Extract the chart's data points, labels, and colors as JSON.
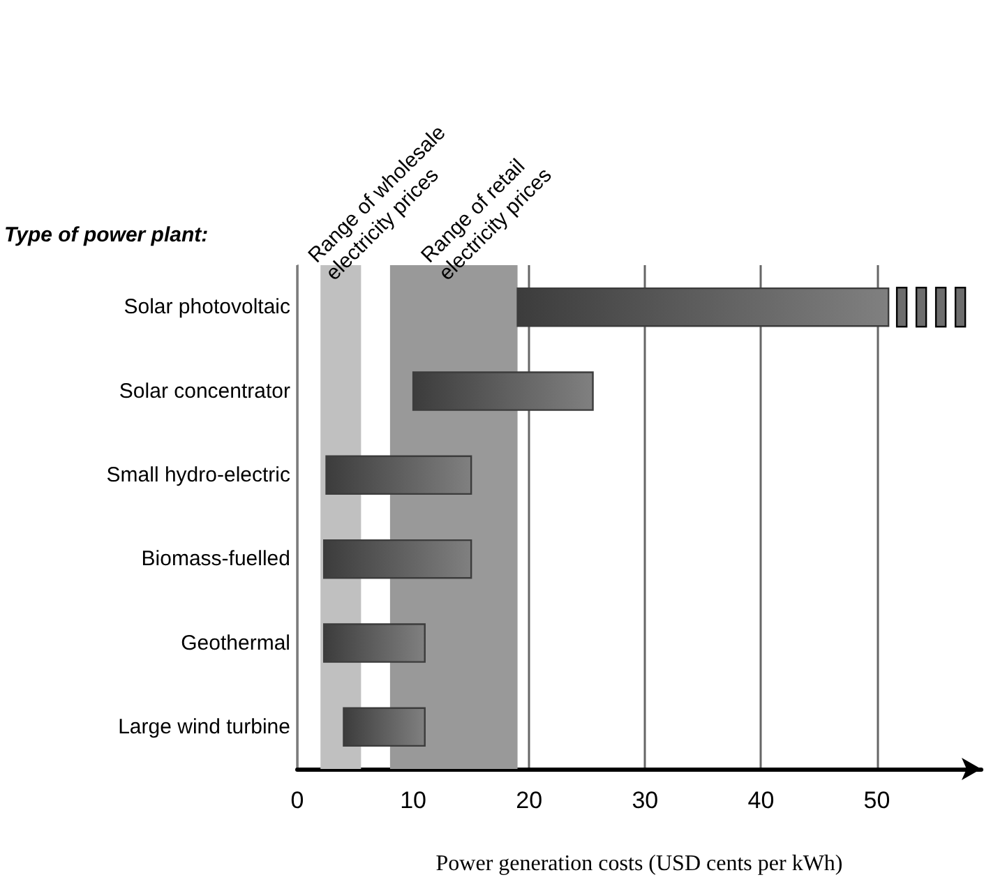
{
  "chart_data": {
    "type": "bar",
    "orientation": "horizontal",
    "ylabel": "Type of power plant:",
    "xlabel": "Power generation costs (USD cents per kWh)",
    "categories": [
      "Solar photovoltaic",
      "Solar concentrator",
      "Small hydro-electric",
      "Biomass-fuelled",
      "Geothermal",
      "Large wind turbine"
    ],
    "base": [
      19,
      10,
      2.5,
      2.3,
      2.3,
      4
    ],
    "values": [
      32,
      15.5,
      12.5,
      12.7,
      8.7,
      7
    ],
    "color": "#3c3c3c",
    "xlim": [
      0,
      59
    ],
    "xticks": [
      0,
      10,
      20,
      30,
      40,
      50
    ],
    "grid": "x",
    "bands": [
      {
        "axis": "x",
        "from": 2,
        "to": 5.5,
        "label": "Range of wholesale\nelectricity prices",
        "color": "#c0c0c0"
      },
      {
        "axis": "x",
        "from": 8,
        "to": 19,
        "label": "Range of retail\nelectricity prices",
        "color": "#999999"
      }
    ]
  }
}
